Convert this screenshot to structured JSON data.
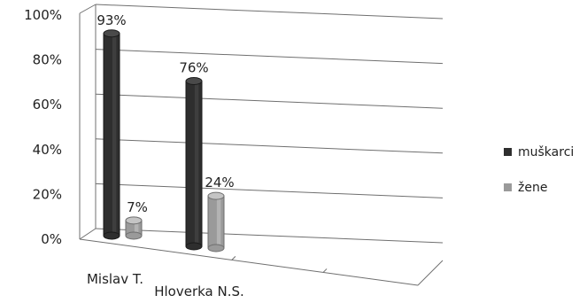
{
  "chart_data": {
    "type": "bar",
    "style": "3d-cylinder",
    "categories": [
      "Mislav T.",
      "Hloverka N.S."
    ],
    "series": [
      {
        "name": "muškarci",
        "values": [
          93,
          76
        ],
        "labels": [
          "93%",
          "76%"
        ],
        "color": "#333333"
      },
      {
        "name": "žene",
        "values": [
          7,
          24
        ],
        "labels": [
          "7%",
          "24%"
        ],
        "color": "#8f8f8f"
      }
    ],
    "ylim": [
      0,
      100
    ],
    "yticks": [
      "0%",
      "20%",
      "40%",
      "60%",
      "80%",
      "100%"
    ],
    "grid": true,
    "legend": "right",
    "title": "",
    "xlabel": "",
    "ylabel": ""
  }
}
